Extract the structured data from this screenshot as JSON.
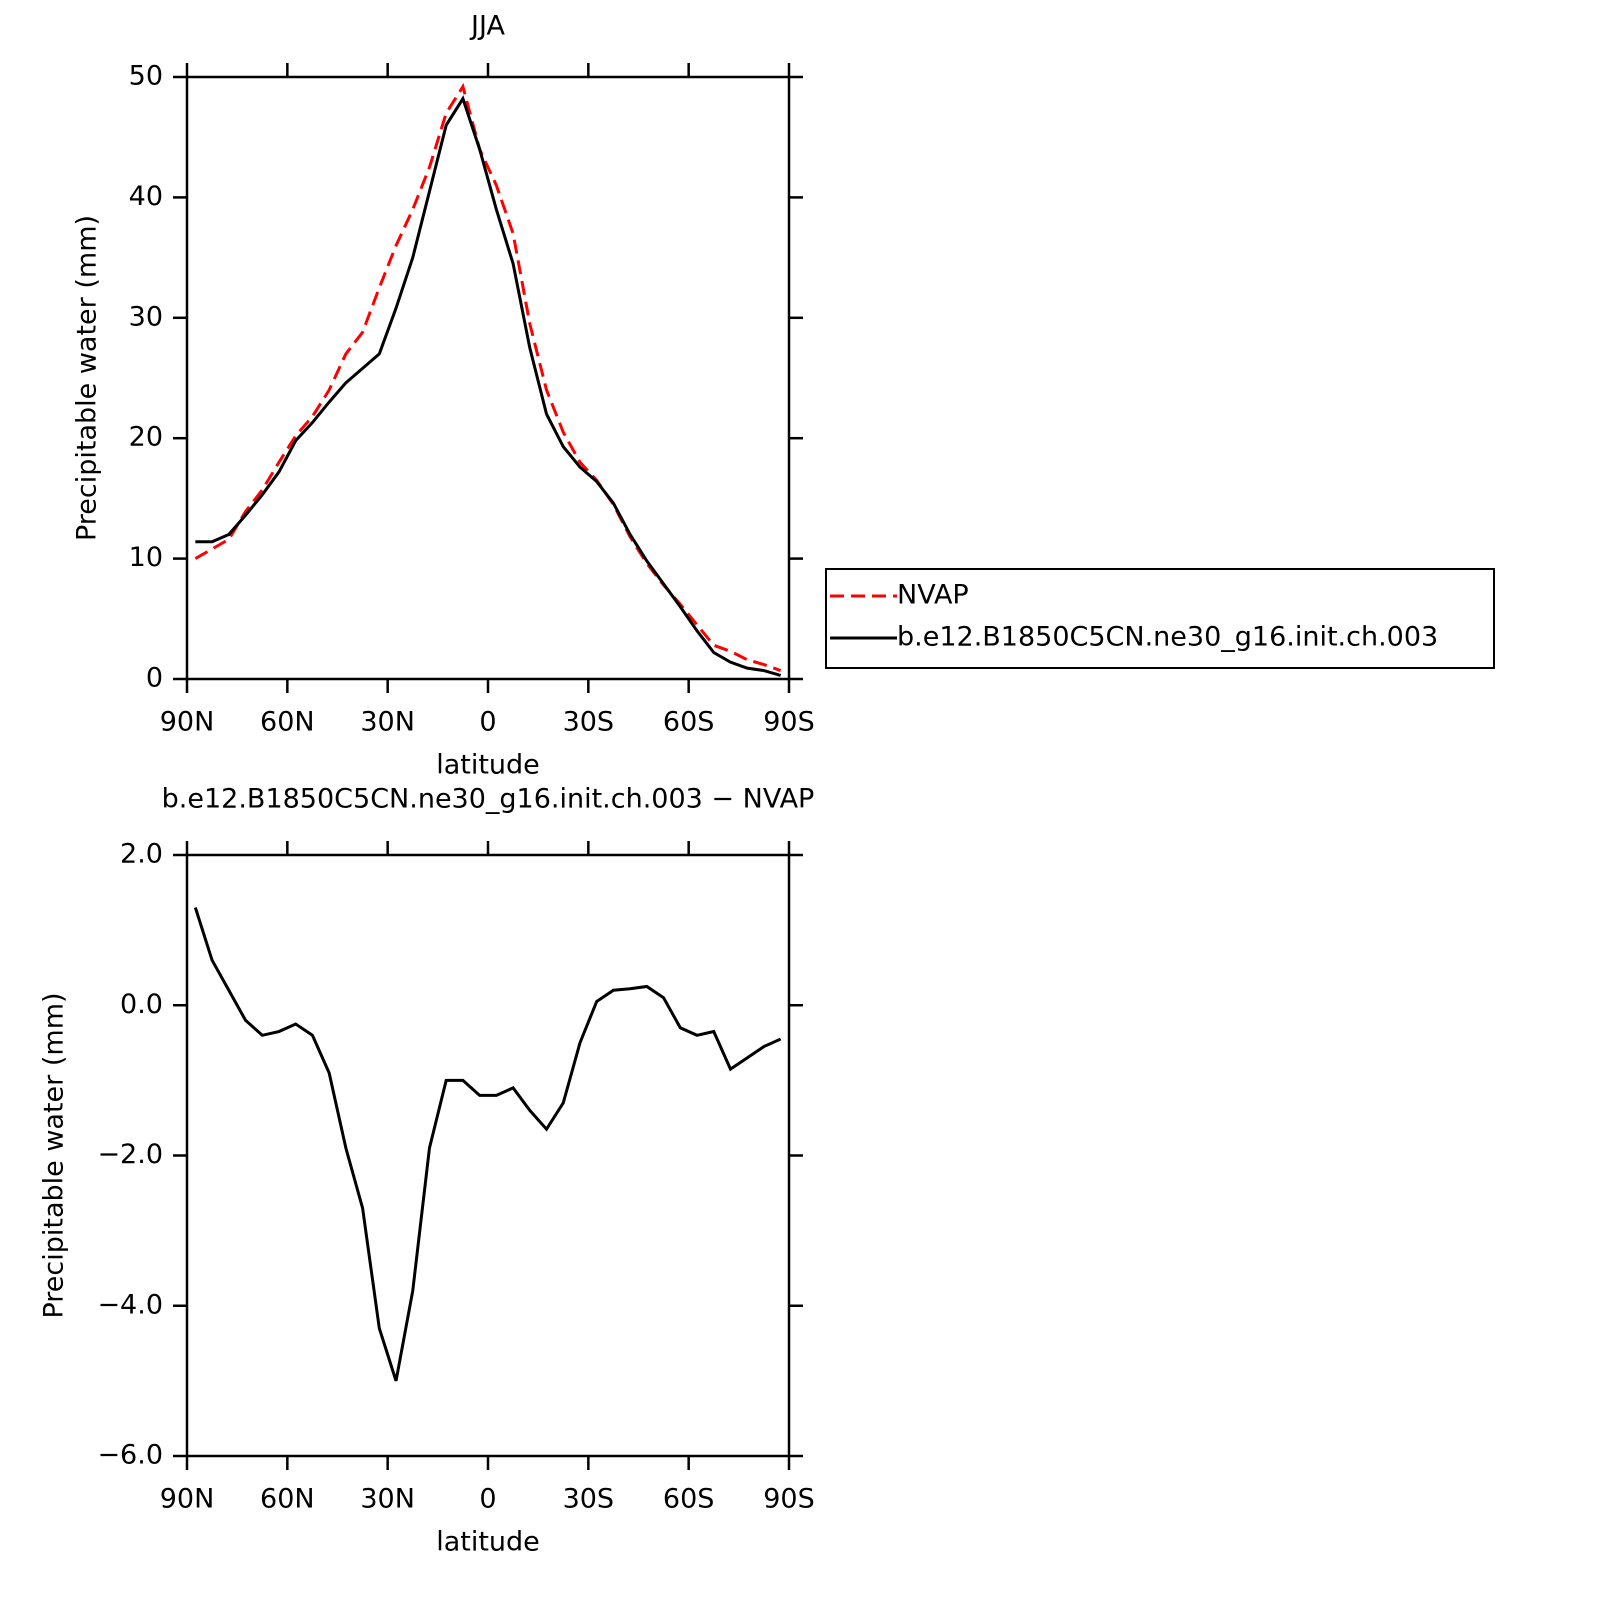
{
  "chart_data": [
    {
      "type": "line",
      "title": "JJA",
      "xlabel": "latitude",
      "ylabel": "Precipitable water (mm)",
      "x": [
        87.5,
        82.5,
        77.5,
        72.5,
        67.5,
        62.5,
        57.5,
        52.5,
        47.5,
        42.5,
        37.5,
        32.5,
        27.5,
        22.5,
        17.5,
        12.5,
        7.5,
        2.5,
        -2.5,
        -7.5,
        -12.5,
        -17.5,
        -22.5,
        -27.5,
        -32.5,
        -37.5,
        -42.5,
        -47.5,
        -52.5,
        -57.5,
        -62.5,
        -67.5,
        -72.5,
        -77.5,
        -82.5,
        -87.5
      ],
      "series": [
        {
          "name": "NVAP",
          "color": "#ff0000",
          "linestyle": "dashed",
          "values": [
            10.0,
            10.8,
            11.6,
            13.9,
            15.7,
            18.0,
            20.2,
            21.8,
            24.0,
            27.0,
            28.8,
            32.5,
            36.0,
            39.0,
            42.5,
            47.0,
            49.2,
            44.0,
            41.0,
            37.0,
            29.5,
            24.0,
            20.5,
            18.0,
            16.5,
            14.5,
            11.8,
            9.6,
            7.8,
            6.2,
            4.5,
            2.8,
            2.3,
            1.6,
            1.2,
            0.7
          ]
        },
        {
          "name": "b.e12.B1850C5CN.ne30_g16.init.ch.003",
          "color": "#000000",
          "linestyle": "solid",
          "values": [
            11.4,
            11.4,
            12.0,
            13.6,
            15.3,
            17.2,
            19.8,
            21.3,
            23.0,
            24.6,
            25.8,
            27.0,
            30.8,
            35.0,
            40.5,
            46.0,
            48.2,
            44.0,
            39.0,
            34.5,
            27.5,
            22.0,
            19.3,
            17.6,
            16.4,
            14.6,
            12.0,
            9.8,
            7.9,
            6.0,
            4.0,
            2.2,
            1.4,
            0.9,
            0.7,
            0.3
          ]
        }
      ],
      "xlim": [
        90,
        -90
      ],
      "xticks": [
        {
          "value": 90,
          "label": "90N"
        },
        {
          "value": 60,
          "label": "60N"
        },
        {
          "value": 30,
          "label": "30N"
        },
        0,
        {
          "value": -30,
          "label": "30S"
        },
        {
          "value": -60,
          "label": "60S"
        },
        {
          "value": -90,
          "label": "90S"
        }
      ],
      "ylim": [
        0,
        50
      ],
      "yticks": [
        0,
        10,
        20,
        30,
        40,
        50
      ],
      "legend": "right"
    },
    {
      "type": "line",
      "title": "b.e12.B1850C5CN.ne30_g16.init.ch.003 − NVAP",
      "xlabel": "latitude",
      "ylabel": "Precipitable water (mm)",
      "x": [
        87.5,
        82.5,
        77.5,
        72.5,
        67.5,
        62.5,
        57.5,
        52.5,
        47.5,
        42.5,
        37.5,
        32.5,
        27.5,
        22.5,
        17.5,
        12.5,
        7.5,
        2.5,
        -2.5,
        -7.5,
        -12.5,
        -17.5,
        -22.5,
        -27.5,
        -32.5,
        -37.5,
        -42.5,
        -47.5,
        -52.5,
        -57.5,
        -62.5,
        -67.5,
        -72.5,
        -77.5,
        -82.5,
        -87.5
      ],
      "series": [
        {
          "color": "#000000",
          "linestyle": "solid",
          "values": [
            1.3,
            0.6,
            0.2,
            -0.2,
            -0.4,
            -0.35,
            -0.25,
            -0.4,
            -0.9,
            -1.9,
            -2.7,
            -4.3,
            -5.0,
            -3.8,
            -1.9,
            -1.0,
            -1.0,
            -1.2,
            -1.2,
            -1.1,
            -1.4,
            -1.65,
            -1.3,
            -0.5,
            0.05,
            0.2,
            0.22,
            0.25,
            0.1,
            -0.3,
            -0.4,
            -0.35,
            -0.85,
            -0.7,
            -0.55,
            -0.45
          ]
        }
      ],
      "xlim": [
        90,
        -90
      ],
      "xticks": [
        {
          "value": 90,
          "label": "90N"
        },
        {
          "value": 60,
          "label": "60N"
        },
        {
          "value": 30,
          "label": "30N"
        },
        0,
        {
          "value": -30,
          "label": "30S"
        },
        {
          "value": -60,
          "label": "60S"
        },
        {
          "value": -90,
          "label": "90S"
        }
      ],
      "ylim": [
        -6,
        2
      ],
      "yticks": [
        {
          "value": -6,
          "label": "−6.0"
        },
        {
          "value": -4,
          "label": "−4.0"
        },
        {
          "value": -2,
          "label": "−2.0"
        },
        {
          "value": 0,
          "label": "0.0"
        },
        {
          "value": 2,
          "label": "2.0"
        }
      ]
    }
  ]
}
